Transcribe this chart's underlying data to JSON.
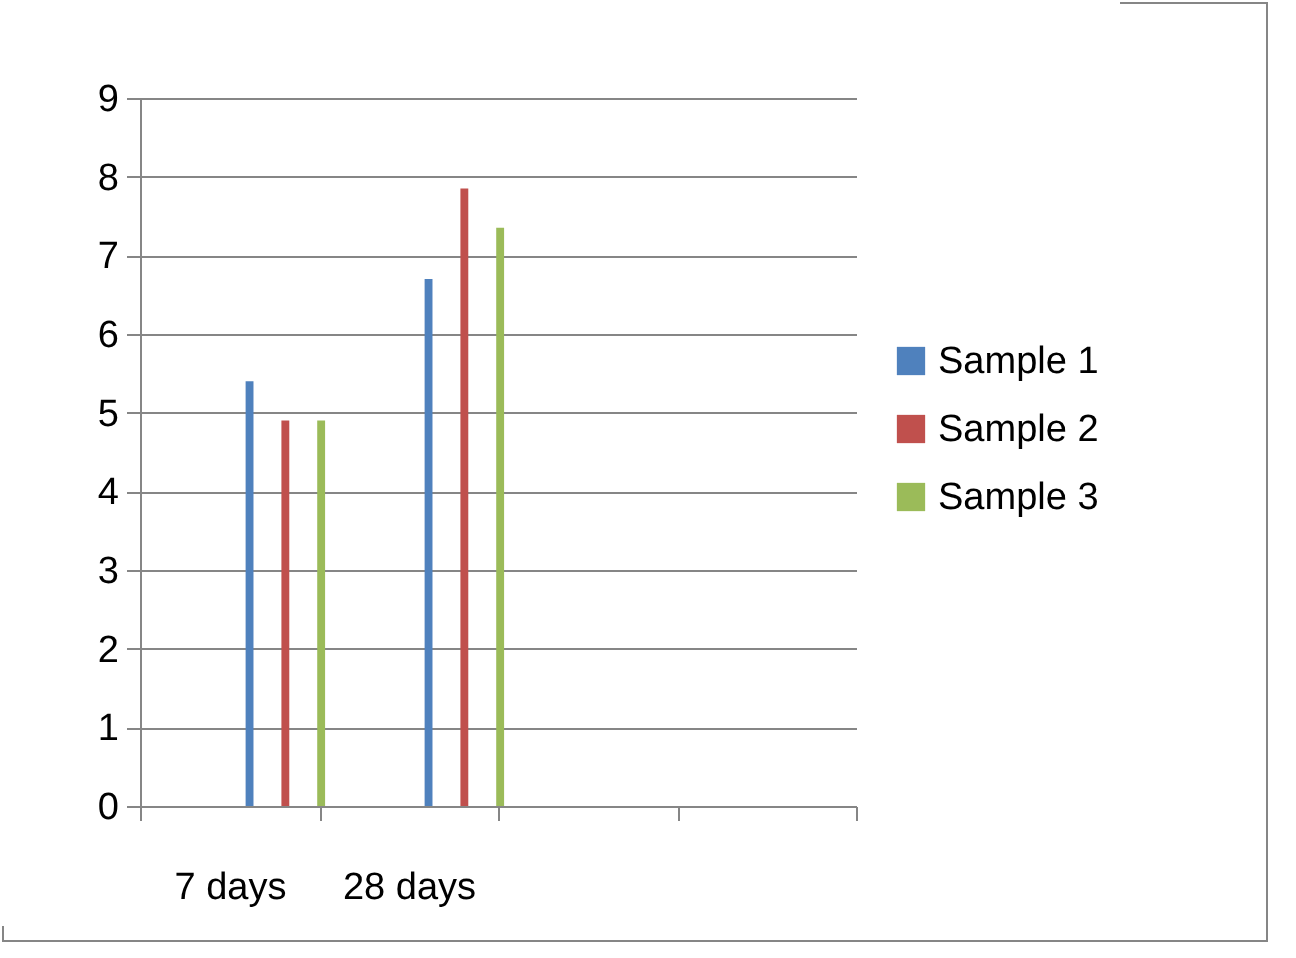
{
  "chart_data": {
    "type": "bar",
    "categories": [
      "7 days",
      "28 days",
      null,
      null
    ],
    "series": [
      {
        "name": "Sample 1",
        "color": "#4f81bd",
        "values": [
          5.4,
          6.7,
          null,
          null
        ]
      },
      {
        "name": "Sample 2",
        "color": "#c0504d",
        "values": [
          4.9,
          7.85,
          null,
          null
        ]
      },
      {
        "name": "Sample 3",
        "color": "#9bbb59",
        "values": [
          4.9,
          7.35,
          null,
          null
        ]
      }
    ],
    "ylim": [
      0,
      9
    ],
    "yticks": [
      0,
      1,
      2,
      3,
      4,
      5,
      6,
      7,
      8,
      9
    ],
    "grid": "y",
    "legend": "right"
  }
}
